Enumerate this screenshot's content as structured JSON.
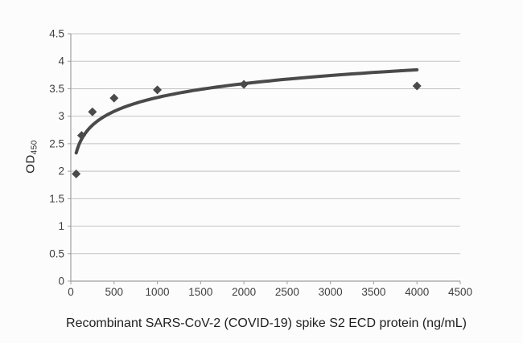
{
  "chart": {
    "y_axis_title_main": "OD",
    "y_axis_title_sub": "450",
    "x_axis_title": "Recombinant SARS-CoV-2 (COVID-19) spike S2 ECD protein (ng/mL)"
  },
  "chart_data": {
    "type": "scatter",
    "title": "",
    "xlabel": "Recombinant SARS-CoV-2 (COVID-19) spike S2 ECD protein (ng/mL)",
    "ylabel": "OD 450",
    "x": [
      62.5,
      125,
      250,
      500,
      1000,
      2000,
      4000
    ],
    "y": [
      1.95,
      2.65,
      3.08,
      3.33,
      3.48,
      3.58,
      3.55
    ],
    "trendline": {
      "type": "logarithmic",
      "a": 0.3637,
      "b": 0.828,
      "x_start": 62.5,
      "x_end": 4000
    },
    "xlim": [
      0,
      4500
    ],
    "ylim": [
      0,
      4.5
    ],
    "x_ticks": [
      0,
      500,
      1000,
      1500,
      2000,
      2500,
      3000,
      3500,
      4000,
      4500
    ],
    "y_ticks": [
      0,
      0.5,
      1,
      1.5,
      2,
      2.5,
      3,
      3.5,
      4,
      4.5
    ],
    "grid": "horizontal",
    "legend": "none",
    "marker": "diamond",
    "colors": {
      "marker": "#4a4a4a",
      "trendline": "#4a4a4a",
      "gridline": "#c3c3c3",
      "axis": "#9e9e9e",
      "tick_label": "#3f3f3f",
      "axis_title": "#1f1f1f",
      "background": "#fcfcfc"
    }
  }
}
